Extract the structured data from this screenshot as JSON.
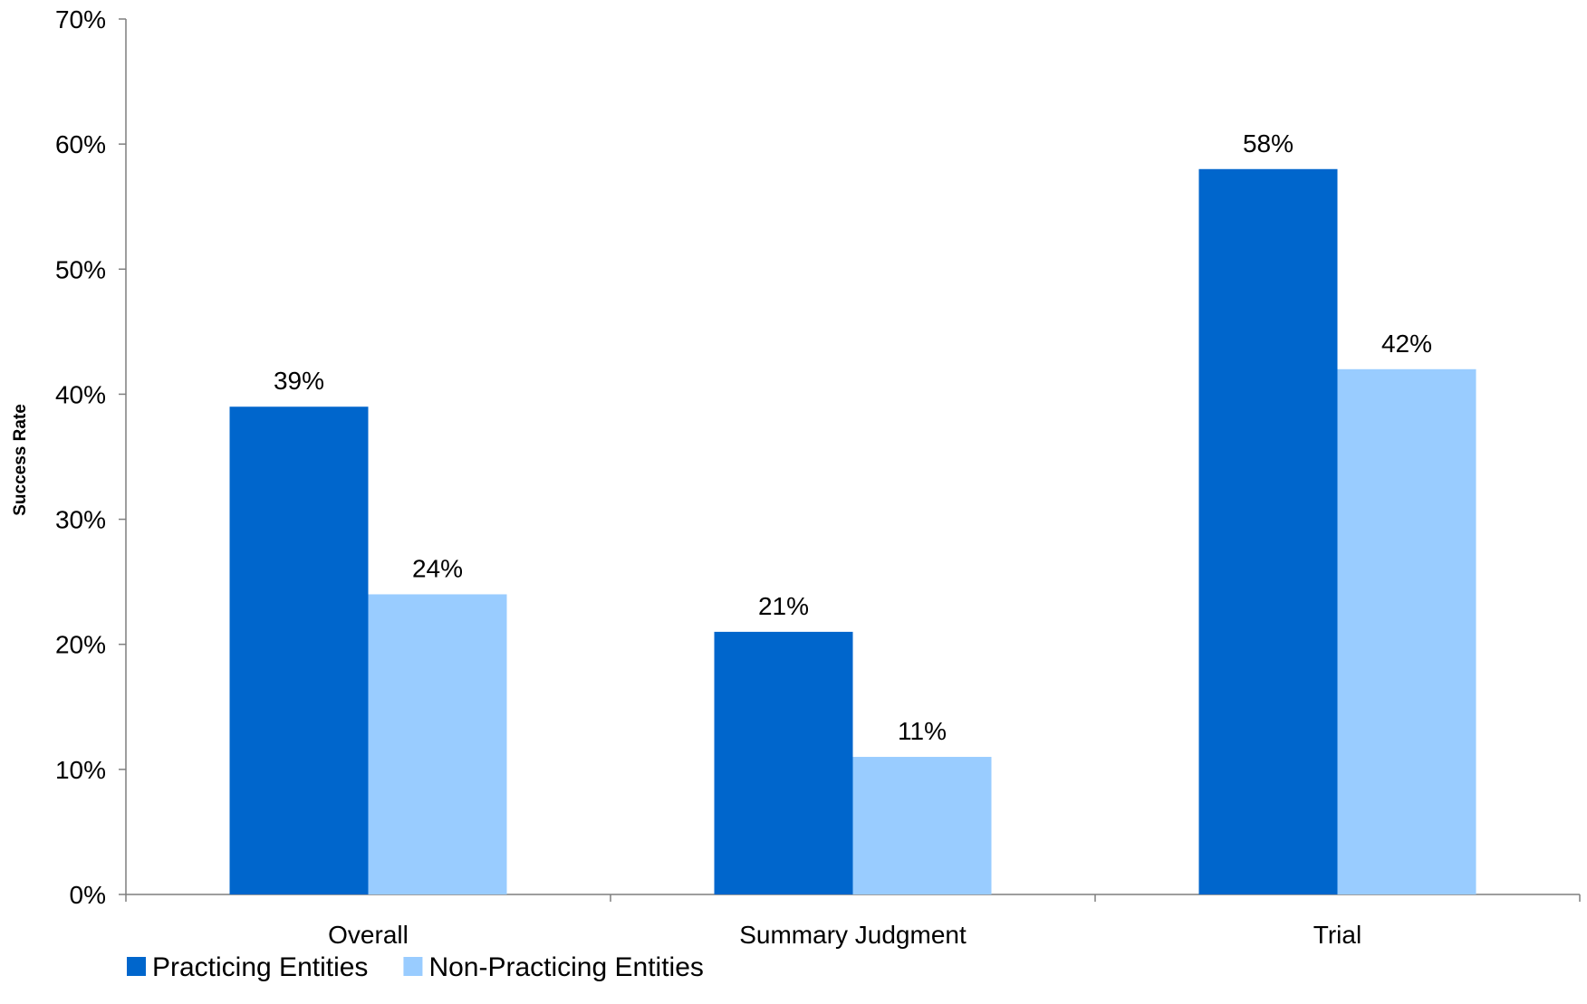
{
  "chart_data": {
    "type": "bar",
    "title": "",
    "xlabel": "",
    "ylabel": "Success Rate",
    "categories": [
      "Overall",
      "Summary Judgment",
      "Trial"
    ],
    "series": [
      {
        "name": "Practicing Entities",
        "color": "#0066CC",
        "values": [
          39,
          21,
          58
        ],
        "labels": [
          "39%",
          "21%",
          "58%"
        ]
      },
      {
        "name": "Non-Practicing Entities",
        "color": "#99CCFF",
        "values": [
          24,
          11,
          42
        ],
        "labels": [
          "24%",
          "11%",
          "42%"
        ]
      }
    ],
    "ylim": [
      0,
      70
    ],
    "yticks": [
      0,
      10,
      20,
      30,
      40,
      50,
      60,
      70
    ],
    "ytick_labels": [
      "0%",
      "10%",
      "20%",
      "30%",
      "40%",
      "50%",
      "60%",
      "70%"
    ],
    "grid": false,
    "legend_position": "bottom-left"
  }
}
